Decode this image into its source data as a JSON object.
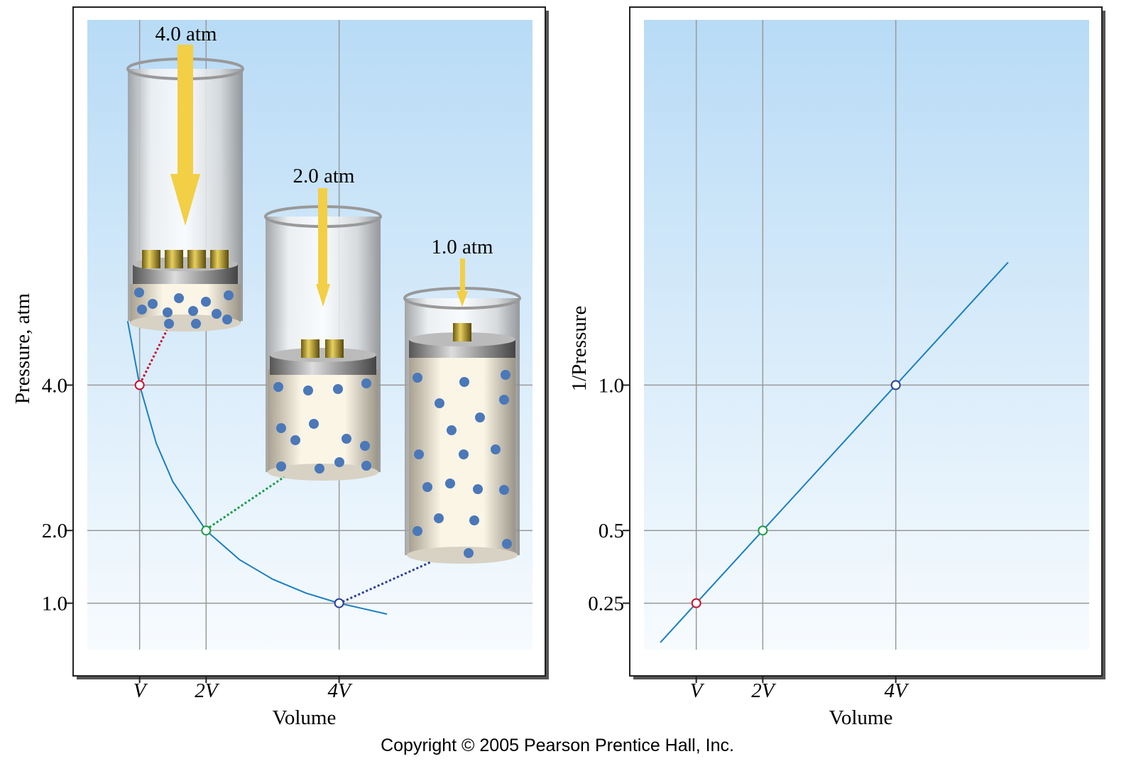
{
  "chart_data": [
    {
      "type": "line",
      "ylabel": "Pressure, atm",
      "xlabel": "Volume",
      "xlim": [
        0,
        7.1
      ],
      "ylim": [
        0,
        9.2
      ],
      "xticks": [
        {
          "value": 1,
          "label": "V"
        },
        {
          "value": 2,
          "label": "2V"
        },
        {
          "value": 4,
          "label": "4V"
        }
      ],
      "yticks": [
        {
          "value": 1,
          "label": "1.0"
        },
        {
          "value": 2,
          "label": "2.0"
        },
        {
          "value": 4,
          "label": "4.0"
        }
      ],
      "grid": true,
      "series": [
        {
          "color": "#1a7fc1",
          "x": [
            0.82,
            1,
            1.25,
            1.5,
            2,
            2.5,
            3,
            3.5,
            4,
            4.72
          ],
          "values": [
            4.88,
            4,
            3.2,
            2.67,
            2,
            1.6,
            1.33,
            1.14,
            1,
            0.85
          ]
        }
      ],
      "markers": {
        "x": [
          1,
          2,
          4
        ],
        "values": [
          4,
          2,
          1
        ],
        "colors": [
          "#c8102e",
          "#1a9b4a",
          "#2a3f9a"
        ]
      },
      "annotations": [
        "4.0 atm",
        "2.0 atm",
        "1.0 atm"
      ]
    },
    {
      "type": "line",
      "ylabel": "1/Pressure",
      "xlabel": "Volume",
      "xlim": [
        0,
        7.1
      ],
      "ylim": [
        0,
        2.3
      ],
      "xticks": [
        {
          "value": 1,
          "label": "V"
        },
        {
          "value": 2,
          "label": "2V"
        },
        {
          "value": 4,
          "label": "4V"
        }
      ],
      "yticks": [
        0.25,
        0.5,
        {
          "value": 1,
          "label": "1.0"
        }
      ],
      "grid": true,
      "series": [
        {
          "color": "#1a7fc1",
          "x": [
            0.46,
            1,
            2,
            4,
            5.69
          ],
          "values": [
            0.115,
            0.25,
            0.5,
            1,
            1.4225
          ]
        }
      ],
      "markers": {
        "x": [
          1,
          2,
          4
        ],
        "values": [
          0.25,
          0.5,
          1
        ],
        "colors": [
          "#c8102e",
          "#1a9b4a",
          "#2a3f9a"
        ]
      }
    }
  ],
  "footer": "Copyright © 2005 Pearson Prentice Hall, Inc."
}
